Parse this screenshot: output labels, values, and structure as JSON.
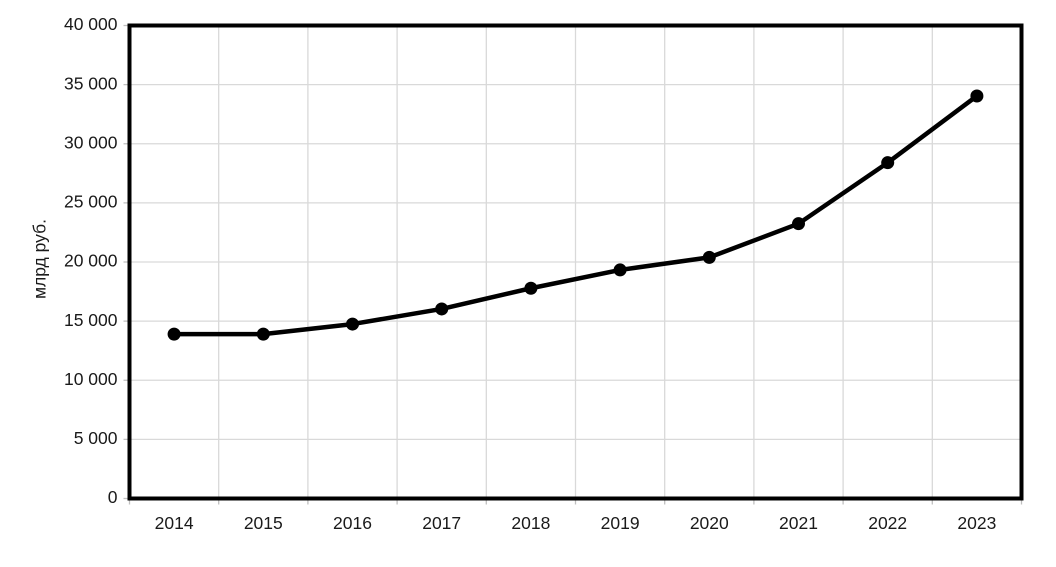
{
  "chart_data": {
    "type": "line",
    "title": "",
    "xlabel": "",
    "ylabel": "млрд руб.",
    "categories": [
      "2014",
      "2015",
      "2016",
      "2017",
      "2018",
      "2019",
      "2020",
      "2021",
      "2022",
      "2023"
    ],
    "series": [
      {
        "name": "",
        "values": [
          13900,
          13900,
          14750,
          16030,
          17780,
          19330,
          20390,
          23240,
          28400,
          34040
        ]
      }
    ],
    "ylim": [
      0,
      40000
    ],
    "ytick_step": 5000,
    "ytick_labels": [
      "0",
      "5 000",
      "10 000",
      "15 000",
      "20 000",
      "25 000",
      "30 000",
      "35 000",
      "40 000"
    ],
    "grid": true,
    "legend_position": "none",
    "colors": {
      "line": "#000000",
      "marker": "#000000",
      "plot_border": "#000000",
      "gridline": "#d9d9d9",
      "tick": "#bfbfbf",
      "label": "#1a1a1a"
    }
  }
}
